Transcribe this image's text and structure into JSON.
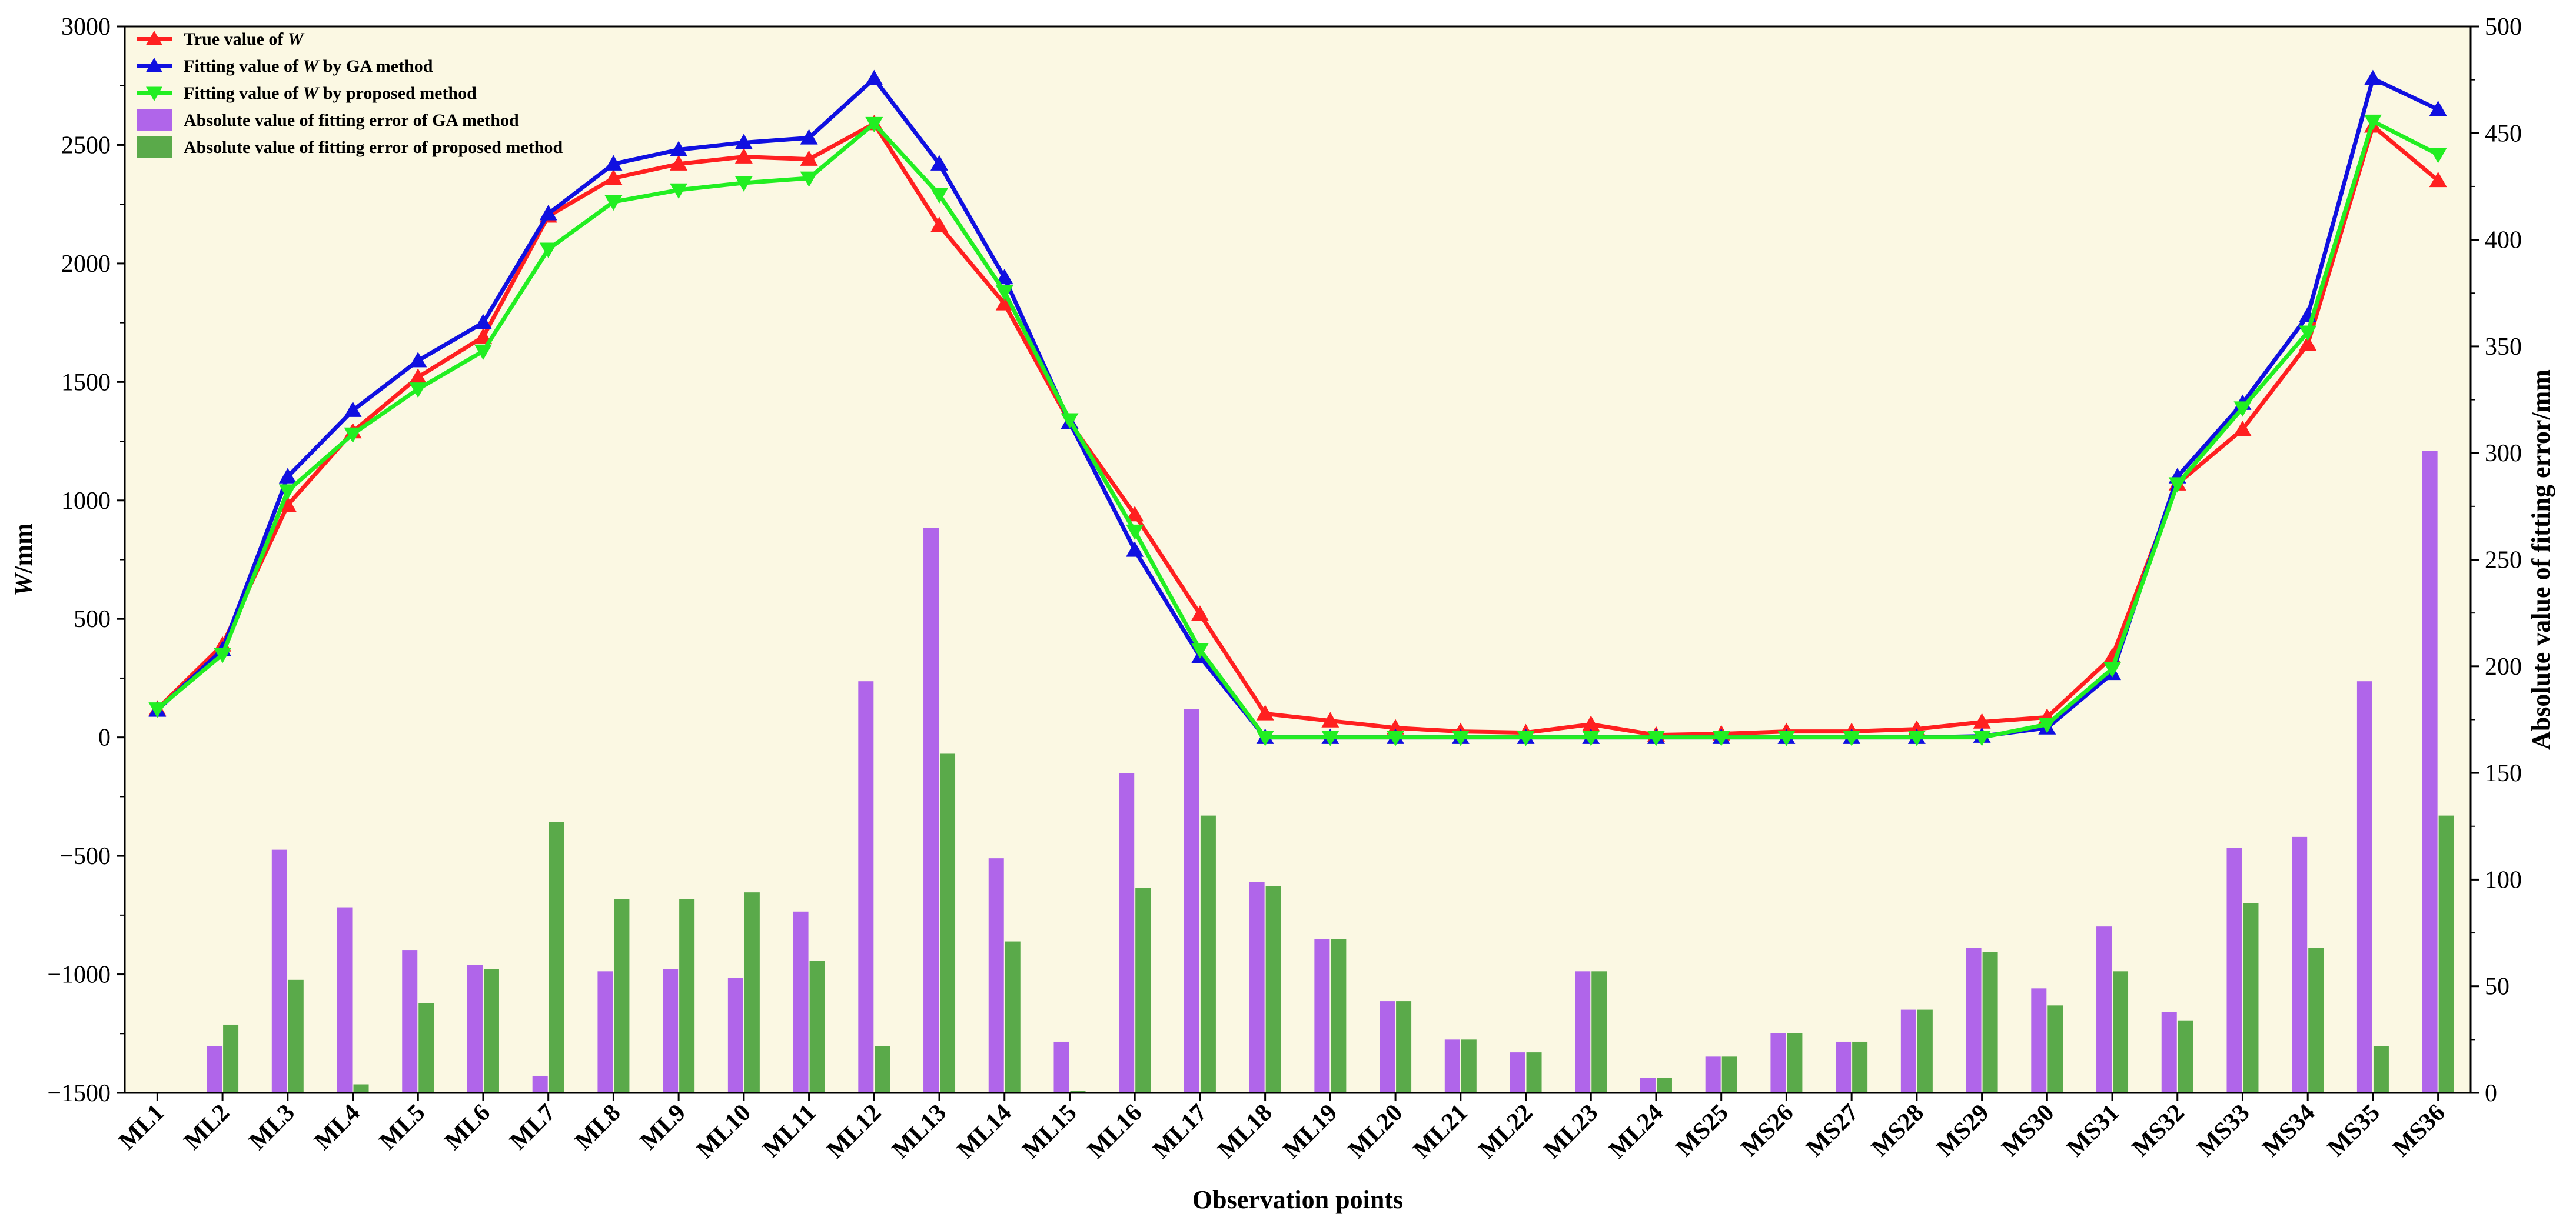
{
  "chart_data": {
    "type": "bar+line",
    "categories": [
      "ML1",
      "ML2",
      "ML3",
      "ML4",
      "ML5",
      "ML6",
      "ML7",
      "ML8",
      "ML9",
      "ML10",
      "ML11",
      "ML12",
      "ML13",
      "ML14",
      "ML15",
      "ML16",
      "ML17",
      "ML18",
      "ML19",
      "ML20",
      "ML21",
      "ML22",
      "ML23",
      "ML24",
      "MS25",
      "MS26",
      "MS27",
      "MS28",
      "MS29",
      "MS30",
      "MS31",
      "MS32",
      "MS33",
      "MS34",
      "MS35",
      "MS36"
    ],
    "xlabel": "Observation points",
    "ylabel": "W/mm",
    "ylabel_italic_part": "W",
    "ylabel_rest": "/mm",
    "y2label": "Absolute value of fitting error/mm",
    "ylim": [
      -1500,
      3000
    ],
    "y2lim": [
      0,
      500
    ],
    "yticks": [
      -1500,
      -1000,
      -500,
      0,
      500,
      1000,
      1500,
      2000,
      2500,
      3000
    ],
    "yticks_labels": [
      "−1500",
      "−1000",
      "−500",
      "0",
      "500",
      "1000",
      "1500",
      "2000",
      "2500",
      "3000"
    ],
    "y2ticks": [
      0,
      50,
      100,
      150,
      200,
      250,
      300,
      350,
      400,
      450,
      500
    ],
    "y2ticks_labels": [
      "0",
      "50",
      "100",
      "150",
      "200",
      "250",
      "300",
      "350",
      "400",
      "450",
      "500"
    ],
    "grid": false,
    "background": "#fbf8e3",
    "legend_position": "top-left",
    "line_series": [
      {
        "name_prefix": "True value of ",
        "name_italic": "W",
        "name_suffix": "",
        "color": "#ff2020",
        "marker": "triangle-up",
        "values": [
          120,
          390,
          980,
          1290,
          1520,
          1690,
          2200,
          2360,
          2420,
          2450,
          2440,
          2590,
          2160,
          1830,
          1330,
          940,
          520,
          100,
          70,
          40,
          25,
          20,
          55,
          10,
          15,
          25,
          25,
          35,
          65,
          85,
          340,
          1070,
          1300,
          1660,
          2580,
          2350
        ]
      },
      {
        "name_prefix": "Fitting value of ",
        "name_italic": "W",
        "name_suffix": " by GA method",
        "color": "#1010e0",
        "marker": "triangle-up",
        "values": [
          115,
          370,
          1100,
          1380,
          1590,
          1750,
          2210,
          2420,
          2480,
          2510,
          2530,
          2780,
          2420,
          1940,
          1330,
          790,
          340,
          0,
          0,
          0,
          0,
          0,
          0,
          0,
          0,
          0,
          0,
          0,
          5,
          40,
          270,
          1100,
          1410,
          1780,
          2780,
          2650
        ]
      },
      {
        "name_prefix": "Fitting value of ",
        "name_italic": "W",
        "name_suffix": " by proposed method",
        "color": "#22ee22",
        "marker": "triangle-down",
        "values": [
          120,
          350,
          1040,
          1280,
          1470,
          1630,
          2060,
          2260,
          2310,
          2340,
          2360,
          2590,
          2290,
          1880,
          1340,
          870,
          370,
          0,
          0,
          0,
          0,
          0,
          0,
          0,
          0,
          0,
          0,
          0,
          0,
          55,
          290,
          1070,
          1390,
          1710,
          2600,
          2460
        ]
      }
    ],
    "bar_series": [
      {
        "name": "Absolute value of fitting error of GA method",
        "color": "#b065ea",
        "values": [
          0,
          22,
          114,
          87,
          67,
          60,
          8,
          57,
          58,
          54,
          85,
          193,
          265,
          110,
          24,
          150,
          180,
          99,
          72,
          43,
          25,
          19,
          57,
          7,
          17,
          28,
          24,
          39,
          68,
          49,
          78,
          38,
          115,
          120,
          193,
          301
        ]
      },
      {
        "name": "Absolute value of fitting error of proposed method",
        "color": "#5aaa4a",
        "values": [
          0,
          32,
          53,
          4,
          42,
          58,
          127,
          91,
          91,
          94,
          62,
          22,
          159,
          71,
          1,
          96,
          130,
          97,
          72,
          43,
          25,
          19,
          57,
          7,
          17,
          28,
          24,
          39,
          66,
          41,
          57,
          34,
          89,
          68,
          22,
          130
        ]
      }
    ]
  }
}
